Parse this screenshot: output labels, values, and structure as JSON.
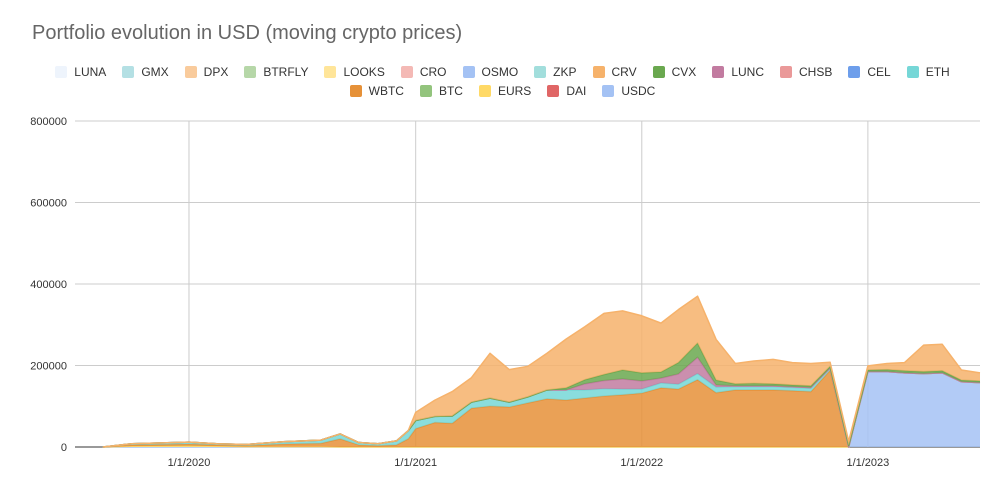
{
  "chart_data": {
    "type": "area",
    "stacked": true,
    "title": "Portfolio evolution in USD (moving crypto prices)",
    "xlabel": "",
    "ylabel": "",
    "ylim": [
      0,
      800000
    ],
    "yticks": [
      0,
      200000,
      400000,
      600000,
      800000
    ],
    "ytick_labels": [
      "0",
      "200000",
      "400000",
      "600000",
      "800000"
    ],
    "xlim": [
      "2019-07-01",
      "2023-07-01"
    ],
    "xticks": [
      "2020-01-01",
      "2021-01-01",
      "2022-01-01",
      "2023-01-01"
    ],
    "xtick_labels": [
      "1/1/2020",
      "1/1/2021",
      "1/1/2022",
      "1/1/2023"
    ],
    "grid": true,
    "legend": "top",
    "legend_rows": [
      [
        "LUNA",
        "GMX",
        "DPX",
        "BTRFLY",
        "LOOKS",
        "CRO",
        "OSMO",
        "ZKP",
        "CRV",
        "CVX",
        "LUNC",
        "CHSB",
        "CEL",
        "ETH"
      ],
      [
        "WBTC",
        "BTC",
        "EURS",
        "DAI",
        "USDC"
      ]
    ],
    "x": [
      "2019-08-15",
      "2019-10-01",
      "2020-01-01",
      "2020-02-15",
      "2020-04-01",
      "2020-06-01",
      "2020-08-01",
      "2020-09-01",
      "2020-10-01",
      "2020-11-01",
      "2020-12-01",
      "2020-12-20",
      "2021-01-01",
      "2021-02-01",
      "2021-03-01",
      "2021-04-01",
      "2021-05-01",
      "2021-06-01",
      "2021-07-01",
      "2021-08-01",
      "2021-09-01",
      "2021-10-01",
      "2021-11-01",
      "2021-12-01",
      "2022-01-01",
      "2022-02-01",
      "2022-03-01",
      "2022-04-01",
      "2022-05-01",
      "2022-06-01",
      "2022-07-01",
      "2022-08-01",
      "2022-09-01",
      "2022-10-01",
      "2022-11-01",
      "2022-12-01",
      "2023-01-01",
      "2023-02-01",
      "2023-03-01",
      "2023-04-01",
      "2023-05-01",
      "2023-06-01",
      "2023-07-01"
    ],
    "series": [
      {
        "name": "USDC",
        "color": "#a4c2f4",
        "values": [
          0,
          0,
          0,
          0,
          0,
          0,
          0,
          0,
          0,
          0,
          0,
          0,
          0,
          0,
          0,
          0,
          0,
          0,
          0,
          0,
          0,
          0,
          0,
          0,
          0,
          0,
          0,
          0,
          0,
          0,
          0,
          0,
          0,
          0,
          0,
          0,
          185000,
          185000,
          182000,
          180000,
          182000,
          160000,
          158000
        ]
      },
      {
        "name": "DAI",
        "color": "#e06666",
        "values": [
          0,
          0,
          0,
          0,
          0,
          0,
          0,
          0,
          0,
          0,
          0,
          0,
          0,
          0,
          0,
          0,
          0,
          0,
          0,
          0,
          0,
          0,
          0,
          0,
          0,
          0,
          0,
          0,
          0,
          0,
          0,
          0,
          0,
          0,
          0,
          0,
          0,
          0,
          0,
          0,
          0,
          0,
          0
        ]
      },
      {
        "name": "EURS",
        "color": "#ffd966",
        "values": [
          0,
          2000,
          3000,
          2000,
          1000,
          1000,
          1000,
          0,
          0,
          0,
          0,
          0,
          0,
          0,
          0,
          0,
          0,
          0,
          0,
          0,
          0,
          0,
          0,
          0,
          0,
          0,
          0,
          0,
          0,
          0,
          0,
          0,
          0,
          0,
          0,
          0,
          0,
          0,
          0,
          0,
          0,
          0,
          0
        ]
      },
      {
        "name": "BTC",
        "color": "#93c47d",
        "values": [
          0,
          0,
          0,
          0,
          0,
          0,
          0,
          0,
          0,
          0,
          0,
          0,
          0,
          0,
          0,
          0,
          0,
          0,
          0,
          0,
          0,
          0,
          0,
          0,
          0,
          0,
          0,
          0,
          0,
          0,
          0,
          0,
          0,
          0,
          0,
          0,
          0,
          0,
          0,
          0,
          0,
          0,
          0
        ]
      },
      {
        "name": "WBTC",
        "color": "#e69138",
        "values": [
          0,
          3000,
          4000,
          3000,
          2000,
          6000,
          8000,
          20000,
          5000,
          3000,
          5000,
          20000,
          45000,
          60000,
          58000,
          95000,
          100000,
          98000,
          108000,
          118000,
          115000,
          120000,
          125000,
          128000,
          132000,
          145000,
          142000,
          165000,
          133000,
          140000,
          140000,
          140000,
          138000,
          136000,
          188000,
          0,
          0,
          0,
          0,
          0,
          0,
          0,
          0
        ]
      },
      {
        "name": "ETH",
        "color": "#76d7d7",
        "values": [
          0,
          3000,
          5000,
          3000,
          3000,
          6000,
          8000,
          12000,
          6000,
          5000,
          10000,
          20000,
          20000,
          15000,
          18000,
          15000,
          20000,
          12000,
          15000,
          22000,
          25000,
          20000,
          18000,
          14000,
          10000,
          12000,
          12000,
          15000,
          14000,
          8000,
          8000,
          8000,
          8000,
          8000,
          6000,
          0,
          0,
          0,
          0,
          0,
          0,
          0,
          0
        ]
      },
      {
        "name": "CEL",
        "color": "#6d9eeb",
        "values": [
          0,
          0,
          0,
          0,
          0,
          0,
          0,
          0,
          0,
          0,
          0,
          0,
          0,
          0,
          0,
          0,
          0,
          0,
          0,
          0,
          0,
          0,
          0,
          0,
          0,
          0,
          0,
          0,
          0,
          0,
          0,
          0,
          0,
          0,
          0,
          0,
          0,
          0,
          0,
          0,
          0,
          0,
          0
        ]
      },
      {
        "name": "CHSB",
        "color": "#ea9999",
        "values": [
          0,
          0,
          0,
          0,
          0,
          0,
          0,
          0,
          0,
          0,
          0,
          0,
          0,
          0,
          0,
          0,
          0,
          0,
          0,
          0,
          0,
          0,
          0,
          0,
          0,
          0,
          0,
          0,
          0,
          0,
          0,
          0,
          0,
          0,
          0,
          0,
          0,
          0,
          0,
          0,
          0,
          0,
          0
        ]
      },
      {
        "name": "LUNC",
        "color": "#c27ba0",
        "values": [
          0,
          0,
          0,
          0,
          0,
          0,
          0,
          0,
          0,
          0,
          0,
          0,
          0,
          0,
          0,
          0,
          0,
          0,
          0,
          0,
          0,
          15000,
          20000,
          25000,
          20000,
          12000,
          25000,
          40000,
          5000,
          2000,
          2000,
          2000,
          2000,
          2000,
          0,
          0,
          0,
          0,
          0,
          0,
          0,
          0,
          0
        ]
      },
      {
        "name": "CVX",
        "color": "#6aa84f",
        "values": [
          0,
          0,
          0,
          0,
          0,
          0,
          0,
          0,
          0,
          0,
          0,
          0,
          0,
          0,
          0,
          0,
          0,
          0,
          0,
          0,
          5000,
          10000,
          15000,
          22000,
          20000,
          15000,
          28000,
          35000,
          12000,
          5000,
          6000,
          5000,
          4000,
          4000,
          4000,
          4000,
          4000,
          5000,
          5000,
          5000,
          5000,
          4000,
          4000
        ]
      },
      {
        "name": "CRV",
        "color": "#f6b26b",
        "values": [
          0,
          0,
          0,
          0,
          0,
          0,
          0,
          0,
          0,
          0,
          0,
          0,
          20000,
          40000,
          60000,
          60000,
          110000,
          80000,
          75000,
          90000,
          120000,
          130000,
          150000,
          145000,
          140000,
          120000,
          130000,
          115000,
          100000,
          50000,
          55000,
          60000,
          55000,
          55000,
          10000,
          10000,
          10000,
          15000,
          20000,
          65000,
          65000,
          25000,
          20000
        ]
      },
      {
        "name": "ZKP",
        "color": "#a2dedc",
        "values": [
          0,
          0,
          0,
          0,
          0,
          0,
          0,
          0,
          0,
          0,
          0,
          0,
          0,
          0,
          0,
          0,
          0,
          0,
          0,
          0,
          0,
          0,
          0,
          0,
          0,
          0,
          0,
          0,
          0,
          0,
          0,
          0,
          0,
          0,
          0,
          0,
          0,
          0,
          0,
          0,
          0,
          0,
          0
        ]
      },
      {
        "name": "OSMO",
        "color": "#a4c2f4",
        "values": [
          0,
          0,
          0,
          0,
          0,
          0,
          0,
          0,
          0,
          0,
          0,
          0,
          0,
          0,
          0,
          0,
          0,
          0,
          0,
          0,
          0,
          0,
          0,
          0,
          0,
          0,
          0,
          0,
          0,
          0,
          0,
          0,
          0,
          0,
          0,
          0,
          0,
          0,
          0,
          0,
          0,
          0,
          0
        ]
      },
      {
        "name": "CRO",
        "color": "#f4b9b5",
        "values": [
          0,
          0,
          0,
          0,
          0,
          0,
          0,
          0,
          0,
          0,
          0,
          0,
          0,
          0,
          0,
          0,
          0,
          0,
          0,
          0,
          0,
          0,
          0,
          0,
          0,
          0,
          0,
          0,
          0,
          0,
          0,
          0,
          0,
          0,
          0,
          0,
          0,
          0,
          0,
          0,
          0,
          0,
          0
        ]
      },
      {
        "name": "LOOKS",
        "color": "#ffe599",
        "values": [
          0,
          0,
          0,
          0,
          0,
          0,
          0,
          0,
          0,
          0,
          0,
          0,
          0,
          0,
          0,
          0,
          0,
          0,
          0,
          0,
          0,
          0,
          0,
          0,
          0,
          0,
          0,
          0,
          0,
          0,
          0,
          0,
          0,
          0,
          0,
          0,
          0,
          0,
          0,
          0,
          0,
          0,
          0
        ]
      },
      {
        "name": "BTRFLY",
        "color": "#b6d7a8",
        "values": [
          0,
          0,
          0,
          0,
          0,
          0,
          0,
          0,
          0,
          0,
          0,
          0,
          0,
          0,
          0,
          0,
          0,
          0,
          0,
          0,
          0,
          0,
          0,
          0,
          0,
          0,
          0,
          0,
          0,
          0,
          0,
          0,
          0,
          0,
          0,
          0,
          0,
          0,
          0,
          0,
          0,
          0,
          0
        ]
      },
      {
        "name": "DPX",
        "color": "#f9cb9c",
        "values": [
          0,
          0,
          0,
          0,
          0,
          0,
          0,
          0,
          0,
          0,
          0,
          0,
          0,
          0,
          0,
          0,
          0,
          0,
          0,
          0,
          0,
          0,
          0,
          0,
          0,
          0,
          0,
          0,
          0,
          0,
          0,
          0,
          0,
          0,
          0,
          0,
          0,
          0,
          0,
          0,
          0,
          0,
          0
        ]
      },
      {
        "name": "GMX",
        "color": "#b4e0e4",
        "values": [
          0,
          0,
          0,
          0,
          0,
          0,
          0,
          0,
          0,
          0,
          0,
          0,
          0,
          0,
          0,
          0,
          0,
          0,
          0,
          0,
          0,
          0,
          0,
          0,
          0,
          0,
          0,
          0,
          0,
          0,
          0,
          0,
          0,
          0,
          0,
          0,
          0,
          0,
          0,
          0,
          0,
          0,
          0
        ]
      },
      {
        "name": "LUNA",
        "color": "#eef4fc",
        "values": [
          0,
          0,
          0,
          0,
          0,
          0,
          0,
          0,
          0,
          0,
          0,
          0,
          0,
          0,
          0,
          0,
          0,
          0,
          0,
          0,
          0,
          0,
          0,
          0,
          0,
          0,
          0,
          0,
          0,
          0,
          0,
          0,
          0,
          0,
          0,
          0,
          0,
          0,
          0,
          0,
          0,
          0,
          0
        ]
      }
    ]
  }
}
